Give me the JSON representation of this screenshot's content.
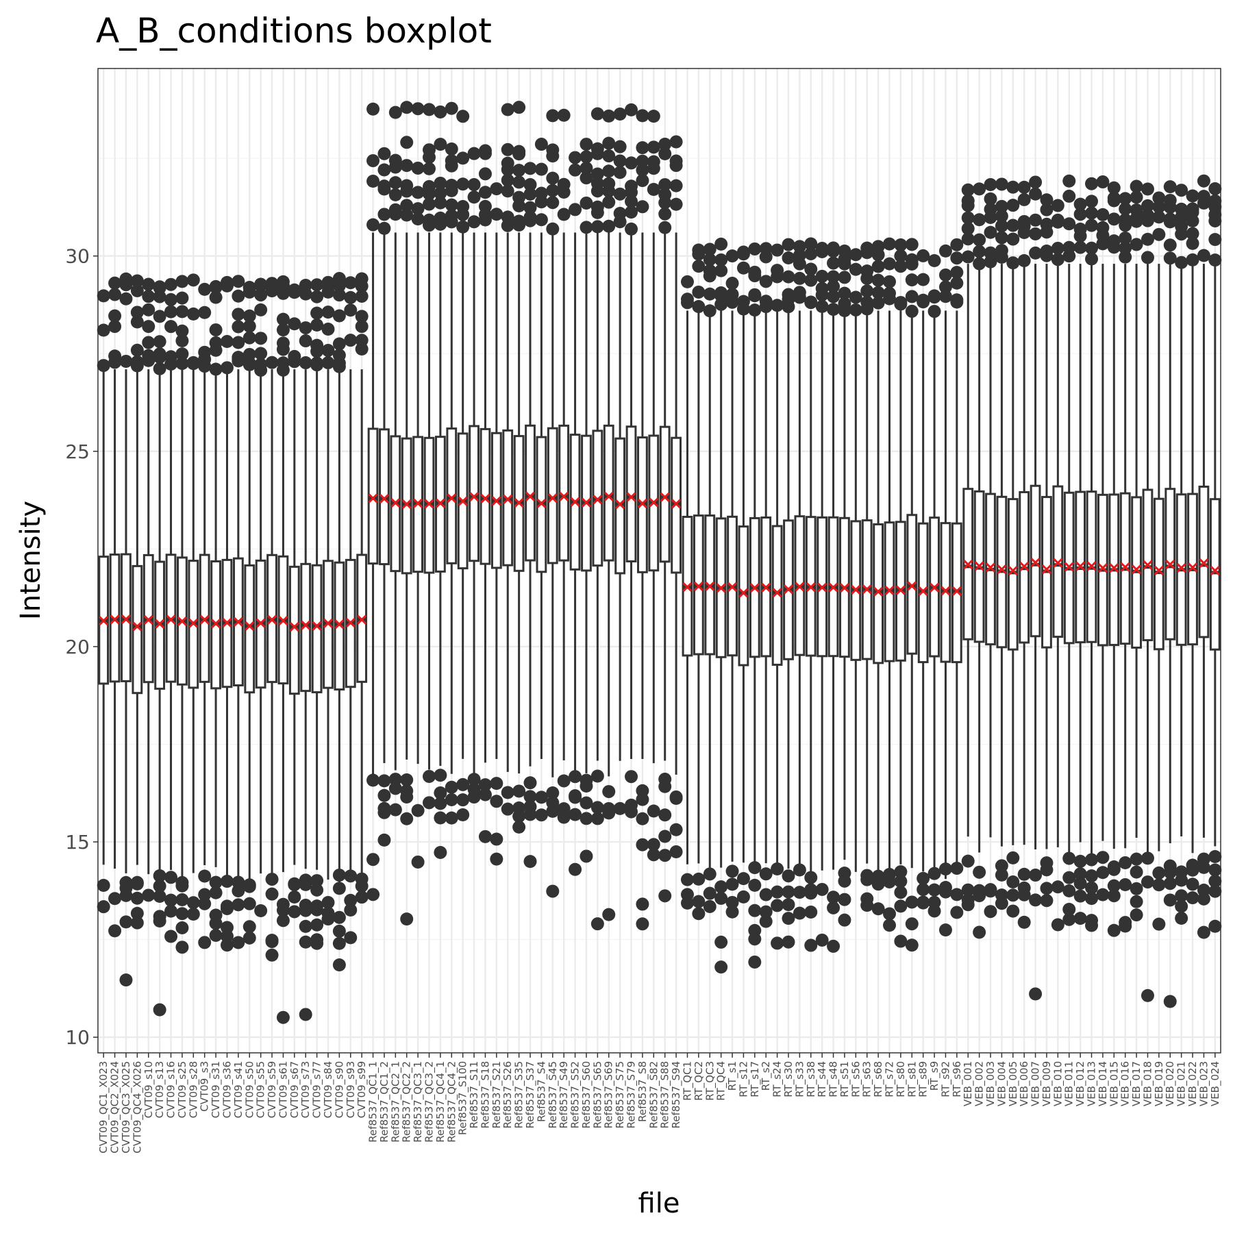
{
  "chart_data": {
    "type": "boxplot",
    "title": "A_B_conditions boxplot",
    "xlabel": "file",
    "ylabel": "Intensity",
    "ylim": [
      9.6,
      34.8
    ],
    "yticks": [
      10,
      15,
      20,
      25,
      30
    ],
    "grid": true,
    "legend": "none",
    "colors": {
      "box": "#333333",
      "mean_marker": "#e31a1c",
      "grid_major": "#ebebeb",
      "grid_minor": "#f4f4f4",
      "panel_border": "#333333",
      "tick_text": "#4d4d4d"
    },
    "groups": [
      {
        "name": "CVT09",
        "files": [
          "CVT09_QC1_X023",
          "CVT09_QC2_X024",
          "CVT09_QC3_X025",
          "CVT09_QC4_X026",
          "CVT09_s10",
          "CVT09_s13",
          "CVT09_s16",
          "CVT09_s25",
          "CVT09_s28",
          "CVT09_s3",
          "CVT09_s31",
          "CVT09_s36",
          "CVT09_s41",
          "CVT09_s50",
          "CVT09_s55",
          "CVT09_s59",
          "CVT09_s61",
          "CVT09_s67",
          "CVT09_s73",
          "CVT09_s77",
          "CVT09_s84",
          "CVT09_s90",
          "CVT09_s93",
          "CVT09_s99"
        ],
        "q1": 18.95,
        "median": 20.6,
        "q3": 22.2,
        "whisker_low": 14.2,
        "whisker_high": 27.1,
        "mean": 20.6,
        "outliers_high": [
          27.2,
          27.3,
          27.5,
          27.8,
          28.2,
          28.5,
          29.0,
          29.2,
          29.3
        ],
        "outliers_low": [
          14.0,
          13.8,
          13.5,
          13.2,
          12.9,
          12.6,
          12.3,
          12.0,
          11.6,
          10.6
        ]
      },
      {
        "name": "Ref8537",
        "files": [
          "Ref8537_QC1_1",
          "Ref8537_QC1_2",
          "Ref8537_QC2_1",
          "Ref8537_QC2_2",
          "Ref8537_QC3_1",
          "Ref8537_QC3_2",
          "Ref8537_QC4_1",
          "Ref8537_QC4_2",
          "Ref8537_S100",
          "Ref8537_S11",
          "Ref8537_S18",
          "Ref8537_S21",
          "Ref8537_S26",
          "Ref8537_S35",
          "Ref8537_S37",
          "Ref8537_S4",
          "Ref8537_S45",
          "Ref8537_S49",
          "Ref8537_S52",
          "Ref8537_S60",
          "Ref8537_S65",
          "Ref8537_S69",
          "Ref8537_S75",
          "Ref8537_S79",
          "Ref8537_S8",
          "Ref8537_S82",
          "Ref8537_S88",
          "Ref8537_S94"
        ],
        "q1": 22.05,
        "median": 23.75,
        "q3": 25.5,
        "whisker_low": 16.9,
        "whisker_high": 30.6,
        "mean": 23.75,
        "outliers_high": [
          30.8,
          31.0,
          31.3,
          31.6,
          31.9,
          32.2,
          32.5,
          32.8,
          33.7
        ],
        "outliers_low": [
          16.6,
          16.3,
          16.0,
          15.7,
          15.4,
          15.0,
          14.6,
          14.2,
          13.8,
          13.5,
          13.0
        ]
      },
      {
        "name": "RT",
        "files": [
          "RT_QC1",
          "RT_QC2",
          "RT_QC3",
          "RT_QC4",
          "RT_s1",
          "RT_s12",
          "RT_s17",
          "RT_s2",
          "RT_s24",
          "RT_s30",
          "RT_s33",
          "RT_s38",
          "RT_s44",
          "RT_s48",
          "RT_s51",
          "RT_s56",
          "RT_s63",
          "RT_s68",
          "RT_s72",
          "RT_s80",
          "RT_s81",
          "RT_s89",
          "RT_s9",
          "RT_s92",
          "RT_s96"
        ],
        "q1": 19.65,
        "median": 21.45,
        "q3": 23.2,
        "whisker_low": 14.3,
        "whisker_high": 28.6,
        "mean": 21.45,
        "outliers_high": [
          28.7,
          28.9,
          29.1,
          29.4,
          29.7,
          30.0,
          30.2
        ],
        "outliers_low": [
          14.2,
          13.9,
          13.6,
          13.3,
          13.0,
          12.6,
          12.4,
          12.1,
          11.8
        ]
      },
      {
        "name": "VEB",
        "files": [
          "VEB_001",
          "VEB_002",
          "VEB_003",
          "VEB_004",
          "VEB_005",
          "VEB_006",
          "VEB_007",
          "VEB_009",
          "VEB_010",
          "VEB_011",
          "VEB_012",
          "VEB_013",
          "VEB_014",
          "VEB_015",
          "VEB_016",
          "VEB_017",
          "VEB_018",
          "VEB_019",
          "VEB_020",
          "VEB_021",
          "VEB_022",
          "VEB_023",
          "VEB_024"
        ],
        "q1": 20.1,
        "median": 22.0,
        "q3": 23.95,
        "whisker_low": 14.9,
        "whisker_high": 29.8,
        "mean": 22.05,
        "outliers_high": [
          29.9,
          30.2,
          30.5,
          30.8,
          31.0,
          31.3,
          31.5,
          31.8
        ],
        "outliers_low": [
          14.5,
          14.2,
          13.9,
          13.6,
          13.3,
          13.0,
          12.8,
          12.6,
          11.0
        ]
      }
    ]
  }
}
